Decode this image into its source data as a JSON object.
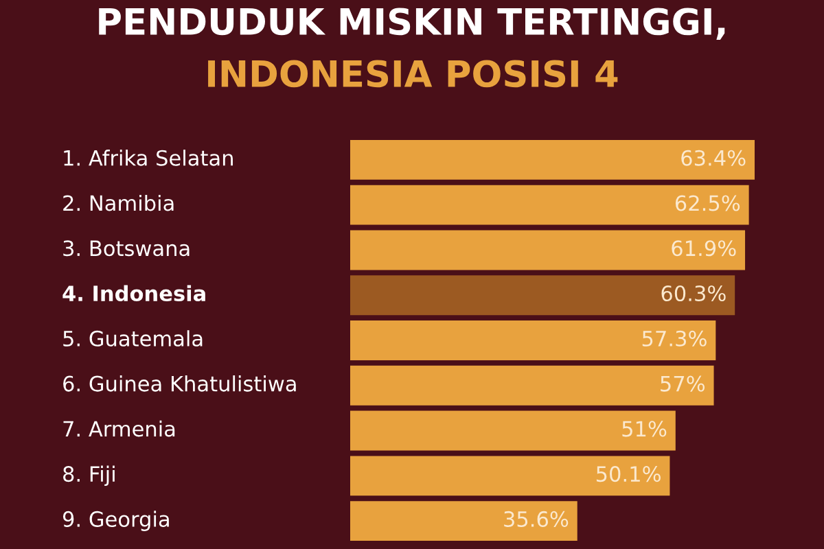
{
  "chart_data": {
    "type": "bar",
    "orientation": "horizontal",
    "title": "PENDUDUK MISKIN TERTINGGI,",
    "subtitle": "INDONESIA POSISI 4",
    "categories": [
      "1. Afrika Selatan",
      "2. Namibia",
      "3. Botswana",
      "4. Indonesia",
      "5. Guatemala",
      "6. Guinea Khatulistiwa",
      "7. Armenia",
      "8. Fiji",
      "9. Georgia"
    ],
    "values": [
      63.4,
      62.5,
      61.9,
      60.3,
      57.3,
      57,
      51,
      50.1,
      35.6
    ],
    "value_labels": [
      "63.4%",
      "62.5%",
      "61.9%",
      "60.3%",
      "57.3%",
      "57%",
      "51%",
      "50.1%",
      "35.6%"
    ],
    "colors": [
      "#e8a23e",
      "#e8a23e",
      "#e8a23e",
      "#9c5a22",
      "#e8a23e",
      "#e8a23e",
      "#e8a23e",
      "#e8a23e",
      "#e8a23e"
    ],
    "stacked": false
  }
}
